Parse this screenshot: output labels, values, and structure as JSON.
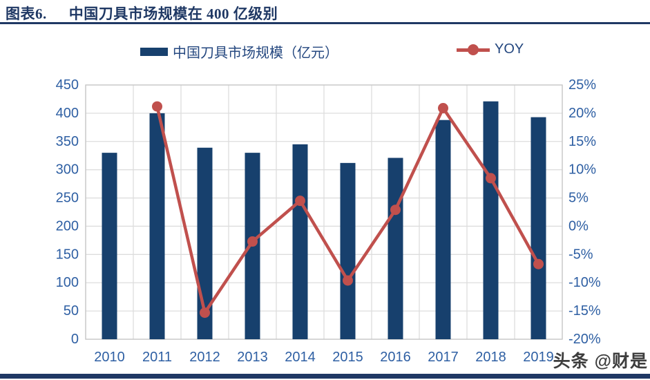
{
  "header": {
    "chart_label": "图表6.",
    "title": "中国刀具市场规模在 400 亿级别"
  },
  "legend": {
    "bar_label": "中国刀具市场规模（亿元）",
    "line_label": "YOY"
  },
  "chart_data": {
    "type": "combo-bar-line",
    "categories": [
      "2010",
      "2011",
      "2012",
      "2013",
      "2014",
      "2015",
      "2016",
      "2017",
      "2018",
      "2019"
    ],
    "series": [
      {
        "name": "中国刀具市场规模（亿元）",
        "type": "bar",
        "axis": "left",
        "color": "#17406D",
        "values": [
          330,
          400,
          339,
          330,
          345,
          312,
          321,
          388,
          421,
          393
        ]
      },
      {
        "name": "YOY",
        "type": "line",
        "axis": "right",
        "color": "#C0504D",
        "unit": "%",
        "values": [
          null,
          21.2,
          -15.3,
          -2.7,
          4.5,
          -9.6,
          2.9,
          20.9,
          8.5,
          -6.7
        ]
      }
    ],
    "left_axis": {
      "min": 0,
      "max": 450,
      "ticks": [
        0,
        50,
        100,
        150,
        200,
        250,
        300,
        350,
        400,
        450
      ],
      "suffix": ""
    },
    "right_axis": {
      "min": -20,
      "max": 25,
      "ticks": [
        -20,
        -15,
        -10,
        -5,
        0,
        5,
        10,
        15,
        20,
        25
      ],
      "suffix": "%"
    },
    "grid": true,
    "legend_position": "top"
  },
  "colors": {
    "accent_navy": "#1F3864",
    "bar": "#17406D",
    "line": "#C0504D",
    "axis_text": "#2E5FA3",
    "legend_text": "#24477F",
    "gridline": "#DDDDDD",
    "plot_border": "#C9C9C9"
  },
  "watermark": {
    "text": "头条 @财是"
  }
}
